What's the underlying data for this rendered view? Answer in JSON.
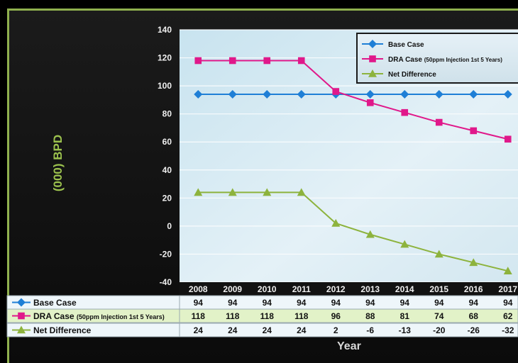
{
  "chart_data": {
    "type": "line",
    "xlabel": "Year",
    "ylabel": "(000) BPD",
    "ylim": [
      -40,
      140
    ],
    "yticks": [
      -40,
      -20,
      0,
      20,
      40,
      60,
      80,
      100,
      120,
      140
    ],
    "x": [
      "2008",
      "2009",
      "2010",
      "2011",
      "2012",
      "2013",
      "2014",
      "2015",
      "2016",
      "2017"
    ],
    "series": [
      {
        "name": "Base Case",
        "color": "#1f7fd6",
        "marker": "diamond",
        "values": [
          94,
          94,
          94,
          94,
          94,
          94,
          94,
          94,
          94,
          94
        ]
      },
      {
        "name": "DRA Case",
        "name_note": "(50ppm Injection 1st 5 Years)",
        "color": "#e0188a",
        "marker": "square",
        "values": [
          118,
          118,
          118,
          118,
          96,
          88,
          81,
          74,
          68,
          62
        ]
      },
      {
        "name": "Net Difference",
        "color": "#8db33d",
        "marker": "triangle",
        "values": [
          24,
          24,
          24,
          24,
          2,
          -6,
          -13,
          -20,
          -26,
          -32
        ]
      }
    ],
    "grid": true,
    "legend": "top-right",
    "data_table": true
  },
  "labels": {
    "ylabel": "(000) BPD",
    "xlabel": "Year"
  }
}
